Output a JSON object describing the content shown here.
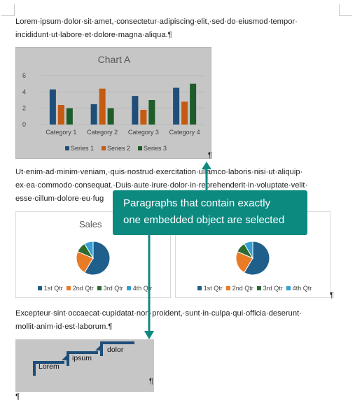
{
  "document": {
    "paragraph1": {
      "line1": "Lorem·ipsum·dolor·sit·amet,·consectetur·adipiscing·elit,·sed·do·eiusmod·tempor·",
      "line2": "incididunt·ut·labore·et·dolore·magna·aliqua.¶"
    },
    "paragraph2": {
      "line1": "Ut·enim·ad·minim·veniam,·quis·nostrud·exercitation·ullamco·laboris·nisi·ut·aliquip·",
      "line2": "ex·ea·commodo·consequat.·Duis·aute·irure·dolor·in·reprehenderit·in·voluptate·velit·",
      "line3": "esse·cillum·dolore·eu·fug"
    },
    "paragraph3": {
      "line1": "Excepteur·sint·occaecat·cupidatat·non·proident,·sunt·in·culpa·qui·officia·deserunt·",
      "line2": "mollit·anim·id·est·laborum.¶"
    },
    "pilcrow": "¶"
  },
  "chart_data": [
    {
      "type": "bar",
      "title": "Chart A",
      "categories": [
        "Category 1",
        "Category 2",
        "Category 3",
        "Category 4"
      ],
      "series": [
        {
          "name": "Series 1",
          "values": [
            4.3,
            2.5,
            3.5,
            4.5
          ],
          "color": "#1f4e79"
        },
        {
          "name": "Series 2",
          "values": [
            2.4,
            4.4,
            1.8,
            2.8
          ],
          "color": "#c55a11"
        },
        {
          "name": "Series 3",
          "values": [
            2.0,
            2.0,
            3.0,
            5.0
          ],
          "color": "#1e5c2a"
        }
      ],
      "ylim": [
        0,
        6
      ],
      "yticks": [
        "0",
        "2",
        "4",
        "6"
      ],
      "grid": true,
      "legend_position": "bottom"
    },
    {
      "type": "pie",
      "title": "Sales",
      "categories": [
        "1st Qtr",
        "2nd Qtr",
        "3rd Qtr",
        "4th Qtr"
      ],
      "values": [
        8.2,
        3.2,
        1.4,
        1.2
      ],
      "colors": [
        "#1f5f8b",
        "#e97b27",
        "#2e6b2f",
        "#33a0d1"
      ],
      "legend_position": "bottom"
    },
    {
      "type": "pie",
      "title": "",
      "categories": [
        "1st Qtr",
        "2nd Qtr",
        "3rd Qtr",
        "4th Qtr"
      ],
      "values": [
        8.2,
        3.2,
        1.4,
        1.2
      ],
      "colors": [
        "#1f5f8b",
        "#e97b27",
        "#2e6b2f",
        "#33a0d1"
      ],
      "legend_position": "bottom"
    }
  ],
  "callout": {
    "line1": "Paragraphs that contain exactly",
    "line2": "one embedded object are selected",
    "color": "#0d8a80"
  },
  "smartart": {
    "steps": [
      "Lorem",
      "ipsum",
      "dolor"
    ],
    "color": "#1f4e79"
  },
  "colors": {
    "selection_gray": "#c6c6c6",
    "accent_teal": "#0d8a80"
  }
}
